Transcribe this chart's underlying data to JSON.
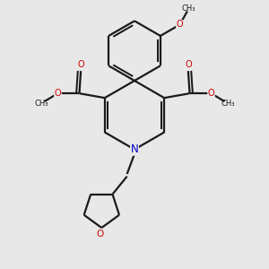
{
  "bg_color": "#e8e8e8",
  "bond_color": "#1a1a1a",
  "oxygen_color": "#cc0000",
  "nitrogen_color": "#0000cc",
  "lw": 1.6,
  "figsize": [
    3.0,
    3.0
  ],
  "dpi": 100,
  "xlim": [
    -4.5,
    4.5
  ],
  "ylim": [
    -4.5,
    4.5
  ]
}
